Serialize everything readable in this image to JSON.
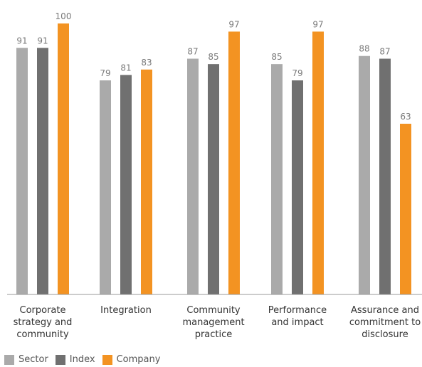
{
  "chart_data": {
    "type": "bar",
    "categories": [
      [
        "Corporate",
        "strategy and",
        "community"
      ],
      [
        "Integration"
      ],
      [
        "Community",
        "management",
        "practice"
      ],
      [
        "Performance",
        "and impact"
      ],
      [
        "Assurance and",
        "commitment to",
        "disclosure"
      ]
    ],
    "series": [
      {
        "name": "Sector",
        "color": "#aaaaaa",
        "values": [
          91,
          79,
          87,
          85,
          88
        ]
      },
      {
        "name": "Index",
        "color": "#707070",
        "values": [
          91,
          81,
          85,
          79,
          87
        ]
      },
      {
        "name": "Company",
        "color": "#f39322",
        "values": [
          100,
          83,
          97,
          97,
          63
        ]
      }
    ],
    "ylim": [
      0,
      100
    ],
    "grid": false,
    "legend_position": "bottom-left",
    "title": "",
    "xlabel": "",
    "ylabel": ""
  }
}
